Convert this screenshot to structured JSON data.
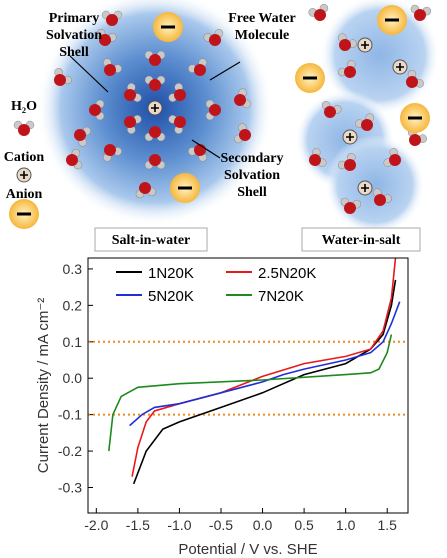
{
  "diagram": {
    "primary_label": [
      "Primary",
      "Solvation",
      "Shell"
    ],
    "free_water_label": [
      "Free Water",
      "Molecule"
    ],
    "secondary_label": [
      "Secondary",
      "Solvation",
      "Shell"
    ],
    "legend_water": "H₂O",
    "legend_cation": "Cation",
    "legend_anion": "Anion",
    "panel_left": "Salt-in-water",
    "panel_right": "Water-in-salt"
  },
  "chart_data": {
    "type": "line",
    "x_label": "Potential / V vs. SHE",
    "y_label": "Current Density / mA cm⁻²",
    "xlim": [
      -2.1,
      1.75
    ],
    "ylim": [
      -0.37,
      0.33
    ],
    "xticks": [
      {
        "value": -2,
        "label": "-2.0"
      },
      -1.5,
      {
        "value": -1,
        "label": "-1.0"
      },
      -0.5,
      {
        "value": 0,
        "label": "0.0"
      },
      0.5,
      {
        "value": 1,
        "label": "1.0"
      },
      1.5
    ],
    "yticks": [
      -0.3,
      -0.2,
      -0.1,
      {
        "value": 0,
        "label": "0.0"
      },
      0.1,
      0.2,
      0.3
    ],
    "reference_lines": {
      "values": [
        0.1,
        -0.1
      ],
      "color": "#f08a1c"
    },
    "series": [
      {
        "name": "1N20K",
        "color": "#000000",
        "x": [
          -1.55,
          -1.4,
          -1.2,
          -1.0,
          -0.5,
          0,
          0.25,
          0.5,
          1.0,
          1.3,
          1.45,
          1.55,
          1.6
        ],
        "values": [
          -0.29,
          -0.2,
          -0.14,
          -0.12,
          -0.08,
          -0.04,
          -0.015,
          0.01,
          0.04,
          0.08,
          0.12,
          0.2,
          0.27
        ]
      },
      {
        "name": "2.5N20K",
        "color": "#e8191c",
        "x": [
          -1.57,
          -1.5,
          -1.4,
          -1.3,
          -1.0,
          -0.5,
          0,
          0.5,
          1.0,
          1.3,
          1.45,
          1.55,
          1.6
        ],
        "values": [
          -0.27,
          -0.19,
          -0.12,
          -0.09,
          -0.07,
          -0.04,
          0.005,
          0.04,
          0.06,
          0.08,
          0.13,
          0.22,
          0.33
        ]
      },
      {
        "name": "5N20K",
        "color": "#1f2fd6",
        "x": [
          -1.6,
          -1.45,
          -1.3,
          -1.0,
          -0.5,
          0,
          0.25,
          0.5,
          1.0,
          1.3,
          1.45,
          1.55,
          1.65
        ],
        "values": [
          -0.13,
          -0.1,
          -0.08,
          -0.07,
          -0.04,
          -0.01,
          0.01,
          0.025,
          0.05,
          0.07,
          0.1,
          0.15,
          0.21
        ]
      },
      {
        "name": "7N20K",
        "color": "#1e8a1e",
        "x": [
          -1.85,
          -1.8,
          -1.7,
          -1.5,
          -1.0,
          0,
          1.0,
          1.3,
          1.4,
          1.5,
          1.55
        ],
        "values": [
          -0.2,
          -0.1,
          -0.05,
          -0.025,
          -0.015,
          -0.005,
          0.01,
          0.015,
          0.025,
          0.07,
          0.12
        ]
      }
    ]
  }
}
